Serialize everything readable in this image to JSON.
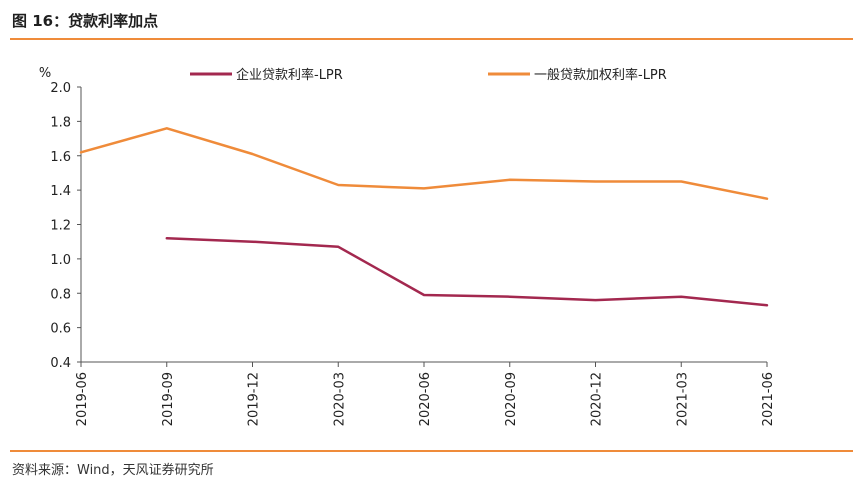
{
  "title": "图 16：贷款利率加点",
  "source": "资料来源：Wind，天风证券研究所",
  "chart_data": {
    "type": "line",
    "ylabel": "%",
    "ylim": [
      0.4,
      2.0
    ],
    "yticks": [
      "0.4",
      "0.6",
      "0.8",
      "1.0",
      "1.2",
      "1.4",
      "1.6",
      "1.8",
      "2.0"
    ],
    "categories": [
      "2019-06",
      "2019-09",
      "2019-12",
      "2020-03",
      "2020-06",
      "2020-09",
      "2020-12",
      "2021-03",
      "2021-06"
    ],
    "grid": false,
    "legend_position": "top",
    "series": [
      {
        "name": "企业贷款利率-LPR",
        "color": "#a3284f",
        "values": [
          null,
          1.12,
          1.1,
          1.07,
          0.79,
          0.78,
          0.76,
          0.78,
          0.73
        ]
      },
      {
        "name": "一般贷款加权利率-LPR",
        "color": "#ef8b3a",
        "values": [
          1.62,
          1.76,
          1.61,
          1.43,
          1.41,
          1.46,
          1.45,
          1.45,
          1.35
        ]
      }
    ]
  }
}
